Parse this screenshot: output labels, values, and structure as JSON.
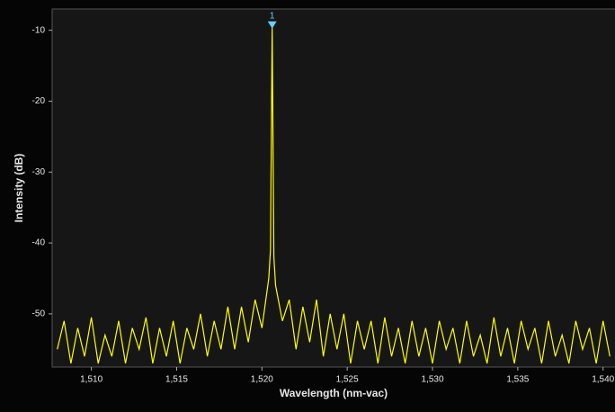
{
  "chart_data": {
    "type": "line",
    "x_label": "Wavelength (nm-vac)",
    "y_label": "Intensity (dB)",
    "xlim": [
      1507.7,
      1540.7
    ],
    "ylim": [
      -57.5,
      -7
    ],
    "xticks": [
      {
        "value": 1510,
        "label": "1,510"
      },
      {
        "value": 1515,
        "label": "1,515"
      },
      {
        "value": 1520,
        "label": "1,520"
      },
      {
        "value": 1525,
        "label": "1,525"
      },
      {
        "value": 1530,
        "label": "1,530"
      },
      {
        "value": 1535,
        "label": "1,535"
      },
      {
        "value": 1540,
        "label": "1,540"
      }
    ],
    "yticks": [
      -10,
      -20,
      -30,
      -40,
      -50
    ],
    "grid": false,
    "series": [
      {
        "color": "#ffff00",
        "x": [
          1508.0,
          1508.4,
          1508.8,
          1509.2,
          1509.6,
          1510.0,
          1510.4,
          1510.8,
          1511.2,
          1511.6,
          1512.0,
          1512.4,
          1512.8,
          1513.2,
          1513.6,
          1514.0,
          1514.4,
          1514.8,
          1515.2,
          1515.6,
          1516.0,
          1516.4,
          1516.8,
          1517.2,
          1517.6,
          1518.0,
          1518.4,
          1518.8,
          1519.2,
          1519.6,
          1520.0,
          1520.4,
          1520.5,
          1520.6,
          1520.7,
          1520.8,
          1521.2,
          1521.6,
          1522.0,
          1522.4,
          1522.8,
          1523.2,
          1523.6,
          1524.0,
          1524.4,
          1524.8,
          1525.2,
          1525.6,
          1526.0,
          1526.4,
          1526.8,
          1527.2,
          1527.6,
          1528.0,
          1528.4,
          1528.8,
          1529.2,
          1529.6,
          1530.0,
          1530.4,
          1530.8,
          1531.2,
          1531.6,
          1532.0,
          1532.4,
          1532.8,
          1533.2,
          1533.6,
          1534.0,
          1534.4,
          1534.8,
          1535.2,
          1535.6,
          1536.0,
          1536.4,
          1536.8,
          1537.2,
          1537.6,
          1538.0,
          1538.4,
          1538.8,
          1539.2,
          1539.6,
          1540.0,
          1540.4
        ],
        "values": [
          -55,
          -51,
          -57,
          -52,
          -56,
          -50.5,
          -57,
          -53,
          -56,
          -51,
          -57,
          -52,
          -55,
          -50.5,
          -57,
          -52,
          -56,
          -51,
          -57,
          -52,
          -55,
          -50,
          -56,
          -51,
          -55,
          -49,
          -55,
          -49,
          -54,
          -48,
          -52,
          -45,
          -41,
          -9.5,
          -42,
          -46,
          -51,
          -48,
          -55,
          -49,
          -54,
          -48,
          -56,
          -50,
          -55,
          -50,
          -57,
          -51,
          -55,
          -51,
          -57,
          -50.5,
          -56,
          -52,
          -57,
          -51,
          -56,
          -52,
          -57,
          -51,
          -55,
          -52,
          -57,
          -51,
          -56,
          -53,
          -57,
          -50.5,
          -56,
          -52,
          -57,
          -51,
          -55,
          -52,
          -57,
          -51,
          -56,
          -53,
          -57,
          -51,
          -55,
          -52,
          -57,
          -51,
          -56
        ]
      }
    ],
    "peak_marker": {
      "label": "1",
      "x": 1520.6,
      "y": -9.5
    }
  }
}
